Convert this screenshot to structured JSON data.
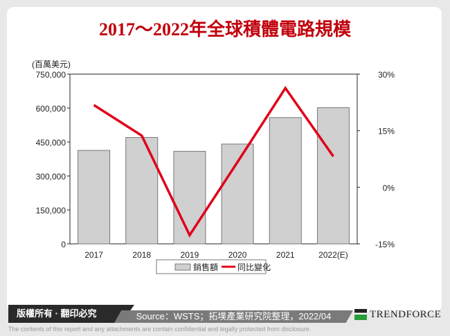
{
  "chart_data": {
    "type": "bar+line",
    "title": "2017～2022年全球積體電路規模",
    "unit_label": "(百萬美元)",
    "categories": [
      "2017",
      "2018",
      "2019",
      "2020",
      "2021",
      "2022(E)"
    ],
    "series": [
      {
        "name": "銷售額",
        "type": "bar",
        "axis": "left",
        "color": "#d0d0d0",
        "values": [
          413000,
          470000,
          409000,
          441000,
          558000,
          602000
        ]
      },
      {
        "name": "同比變化",
        "type": "line",
        "axis": "right",
        "color": "#e0001a",
        "values": [
          21.8,
          13.7,
          -12.7,
          6.7,
          26.3,
          8.2
        ]
      }
    ],
    "y_left": {
      "range": [
        0,
        750000
      ],
      "ticks": [
        "0",
        "150,000",
        "300,000",
        "450,000",
        "600,000",
        "750,000"
      ]
    },
    "y_right": {
      "range": [
        -15,
        30
      ],
      "ticks": [
        "-15%",
        "0%",
        "15%",
        "30%"
      ]
    },
    "grid": false,
    "legend": "bottom"
  },
  "footer": {
    "copyright": "版權所有 · 翻印必究",
    "source": "Source：WSTS；拓墣產業研究院整理，2022/04",
    "logo": "TrendForce",
    "disclaimer": "The contents of this report and any attachments are contain confidential and legally protected from disclosure."
  }
}
